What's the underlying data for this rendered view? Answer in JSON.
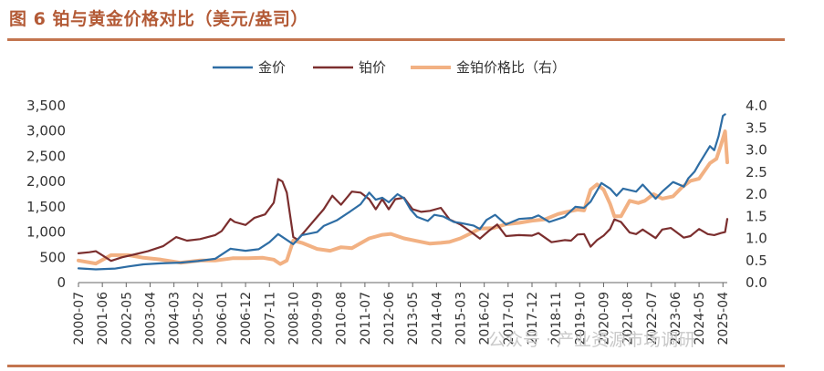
{
  "header": {
    "figure_title": "图 6  铂与黄金价格对比（美元/盎司）"
  },
  "watermark": "公众号 · 产业资源市场调研",
  "chart_data": {
    "type": "line",
    "title": "图 6  铂与黄金价格对比（美元/盎司）",
    "xlabel": "",
    "ylabel": "",
    "y2label": "",
    "x_tick_labels": [
      "2000-07",
      "2001-06",
      "2002-05",
      "2003-04",
      "2004-03",
      "2005-02",
      "2006-01",
      "2006-12",
      "2007-11",
      "2008-10",
      "2009-09",
      "2010-08",
      "2011-07",
      "2012-06",
      "2013-05",
      "2014-04",
      "2015-03",
      "2016-02",
      "2017-01",
      "2017-12",
      "2018-11",
      "2019-10",
      "2020-09",
      "2021-08",
      "2022-07",
      "2023-06",
      "2024-05",
      "2025-04"
    ],
    "ylim_left": [
      0,
      3500
    ],
    "ylim_right": [
      0,
      4.0
    ],
    "y_ticks_left": [
      "0",
      "500",
      "1,000",
      "1,500",
      "2,000",
      "2,500",
      "3,000",
      "3,500"
    ],
    "y_ticks_right": [
      "0.0",
      "0.5",
      "1.0",
      "1.5",
      "2.0",
      "2.5",
      "3.0",
      "3.5",
      "4.0"
    ],
    "legend_position": "top-center",
    "grid": false,
    "series": [
      {
        "name": "金价",
        "axis": "left",
        "color": "#2e6da4",
        "points": [
          [
            "2000-07",
            282
          ],
          [
            "2001-03",
            262
          ],
          [
            "2001-12",
            278
          ],
          [
            "2002-06",
            320
          ],
          [
            "2003-01",
            360
          ],
          [
            "2003-09",
            380
          ],
          [
            "2004-06",
            395
          ],
          [
            "2005-02",
            425
          ],
          [
            "2005-10",
            470
          ],
          [
            "2006-05",
            670
          ],
          [
            "2006-12",
            630
          ],
          [
            "2007-06",
            660
          ],
          [
            "2007-11",
            800
          ],
          [
            "2008-03",
            960
          ],
          [
            "2008-10",
            760
          ],
          [
            "2009-02",
            940
          ],
          [
            "2009-09",
            1000
          ],
          [
            "2009-12",
            1120
          ],
          [
            "2010-06",
            1230
          ],
          [
            "2010-12",
            1400
          ],
          [
            "2011-05",
            1550
          ],
          [
            "2011-09",
            1780
          ],
          [
            "2011-12",
            1640
          ],
          [
            "2012-03",
            1680
          ],
          [
            "2012-06",
            1590
          ],
          [
            "2012-10",
            1750
          ],
          [
            "2013-01",
            1670
          ],
          [
            "2013-04",
            1450
          ],
          [
            "2013-07",
            1300
          ],
          [
            "2013-12",
            1220
          ],
          [
            "2014-03",
            1340
          ],
          [
            "2014-07",
            1310
          ],
          [
            "2014-12",
            1200
          ],
          [
            "2015-03",
            1180
          ],
          [
            "2015-09",
            1130
          ],
          [
            "2015-12",
            1060
          ],
          [
            "2016-03",
            1240
          ],
          [
            "2016-07",
            1340
          ],
          [
            "2016-12",
            1150
          ],
          [
            "2017-06",
            1260
          ],
          [
            "2017-12",
            1280
          ],
          [
            "2018-03",
            1330
          ],
          [
            "2018-08",
            1200
          ],
          [
            "2019-03",
            1300
          ],
          [
            "2019-08",
            1500
          ],
          [
            "2019-12",
            1480
          ],
          [
            "2020-03",
            1600
          ],
          [
            "2020-08",
            1970
          ],
          [
            "2020-12",
            1860
          ],
          [
            "2021-03",
            1720
          ],
          [
            "2021-06",
            1860
          ],
          [
            "2021-12",
            1800
          ],
          [
            "2022-03",
            1940
          ],
          [
            "2022-09",
            1660
          ],
          [
            "2022-12",
            1800
          ],
          [
            "2023-05",
            1990
          ],
          [
            "2023-10",
            1900
          ],
          [
            "2023-12",
            2060
          ],
          [
            "2024-03",
            2200
          ],
          [
            "2024-05",
            2350
          ],
          [
            "2024-10",
            2700
          ],
          [
            "2024-12",
            2620
          ],
          [
            "2025-02",
            2900
          ],
          [
            "2025-04",
            3300
          ],
          [
            "2025-05",
            3330
          ]
        ]
      },
      {
        "name": "铂价",
        "axis": "left",
        "color": "#7b2e2e",
        "points": [
          [
            "2000-07",
            580
          ],
          [
            "2000-12",
            600
          ],
          [
            "2001-03",
            620
          ],
          [
            "2001-06",
            540
          ],
          [
            "2001-10",
            430
          ],
          [
            "2002-03",
            500
          ],
          [
            "2002-09",
            560
          ],
          [
            "2003-03",
            620
          ],
          [
            "2003-10",
            720
          ],
          [
            "2004-04",
            900
          ],
          [
            "2004-09",
            830
          ],
          [
            "2005-03",
            860
          ],
          [
            "2005-10",
            940
          ],
          [
            "2006-01",
            1020
          ],
          [
            "2006-05",
            1260
          ],
          [
            "2006-07",
            1200
          ],
          [
            "2006-12",
            1140
          ],
          [
            "2007-04",
            1280
          ],
          [
            "2007-09",
            1350
          ],
          [
            "2008-01",
            1580
          ],
          [
            "2008-03",
            2050
          ],
          [
            "2008-05",
            2000
          ],
          [
            "2008-07",
            1780
          ],
          [
            "2008-10",
            900
          ],
          [
            "2008-12",
            850
          ],
          [
            "2009-04",
            1050
          ],
          [
            "2009-09",
            1300
          ],
          [
            "2009-12",
            1450
          ],
          [
            "2010-04",
            1720
          ],
          [
            "2010-08",
            1540
          ],
          [
            "2011-01",
            1800
          ],
          [
            "2011-05",
            1780
          ],
          [
            "2011-09",
            1650
          ],
          [
            "2011-12",
            1450
          ],
          [
            "2012-03",
            1650
          ],
          [
            "2012-06",
            1450
          ],
          [
            "2012-09",
            1650
          ],
          [
            "2013-01",
            1680
          ],
          [
            "2013-05",
            1450
          ],
          [
            "2013-09",
            1400
          ],
          [
            "2014-01",
            1420
          ],
          [
            "2014-06",
            1480
          ],
          [
            "2014-10",
            1250
          ],
          [
            "2015-03",
            1150
          ],
          [
            "2015-08",
            1000
          ],
          [
            "2015-12",
            870
          ],
          [
            "2016-04",
            1020
          ],
          [
            "2016-08",
            1150
          ],
          [
            "2016-12",
            920
          ],
          [
            "2017-06",
            940
          ],
          [
            "2017-12",
            930
          ],
          [
            "2018-03",
            980
          ],
          [
            "2018-09",
            800
          ],
          [
            "2019-03",
            840
          ],
          [
            "2019-06",
            830
          ],
          [
            "2019-09",
            950
          ],
          [
            "2019-12",
            960
          ],
          [
            "2020-03",
            710
          ],
          [
            "2020-06",
            840
          ],
          [
            "2020-09",
            930
          ],
          [
            "2020-12",
            1060
          ],
          [
            "2021-02",
            1250
          ],
          [
            "2021-05",
            1200
          ],
          [
            "2021-09",
            990
          ],
          [
            "2021-12",
            960
          ],
          [
            "2022-03",
            1050
          ],
          [
            "2022-09",
            880
          ],
          [
            "2022-12",
            1050
          ],
          [
            "2023-04",
            1080
          ],
          [
            "2023-10",
            890
          ],
          [
            "2024-01",
            920
          ],
          [
            "2024-05",
            1060
          ],
          [
            "2024-09",
            960
          ],
          [
            "2024-12",
            940
          ],
          [
            "2025-03",
            980
          ],
          [
            "2025-05",
            1000
          ],
          [
            "2025-06",
            1260
          ]
        ]
      },
      {
        "name": "金铂价格比（右）",
        "axis": "right",
        "color": "#f2b183",
        "points": [
          [
            "2000-07",
            0.5
          ],
          [
            "2001-03",
            0.43
          ],
          [
            "2001-10",
            0.62
          ],
          [
            "2002-06",
            0.62
          ],
          [
            "2003-01",
            0.56
          ],
          [
            "2003-09",
            0.52
          ],
          [
            "2004-06",
            0.45
          ],
          [
            "2005-03",
            0.5
          ],
          [
            "2005-10",
            0.5
          ],
          [
            "2006-06",
            0.55
          ],
          [
            "2007-01",
            0.55
          ],
          [
            "2007-08",
            0.56
          ],
          [
            "2008-01",
            0.52
          ],
          [
            "2008-04",
            0.42
          ],
          [
            "2008-07",
            0.5
          ],
          [
            "2008-10",
            0.95
          ],
          [
            "2009-02",
            0.9
          ],
          [
            "2009-09",
            0.76
          ],
          [
            "2010-03",
            0.72
          ],
          [
            "2010-08",
            0.8
          ],
          [
            "2011-01",
            0.78
          ],
          [
            "2011-09",
            1.0
          ],
          [
            "2012-03",
            1.08
          ],
          [
            "2012-07",
            1.1
          ],
          [
            "2013-01",
            1.0
          ],
          [
            "2013-06",
            0.95
          ],
          [
            "2014-01",
            0.88
          ],
          [
            "2014-06",
            0.9
          ],
          [
            "2014-10",
            0.92
          ],
          [
            "2015-03",
            1.0
          ],
          [
            "2015-08",
            1.12
          ],
          [
            "2015-12",
            1.22
          ],
          [
            "2016-06",
            1.23
          ],
          [
            "2016-12",
            1.32
          ],
          [
            "2017-06",
            1.35
          ],
          [
            "2017-12",
            1.4
          ],
          [
            "2018-06",
            1.43
          ],
          [
            "2018-12",
            1.55
          ],
          [
            "2019-04",
            1.6
          ],
          [
            "2019-09",
            1.65
          ],
          [
            "2019-12",
            1.63
          ],
          [
            "2020-03",
            2.1
          ],
          [
            "2020-06",
            2.22
          ],
          [
            "2020-09",
            2.1
          ],
          [
            "2020-12",
            1.78
          ],
          [
            "2021-02",
            1.5
          ],
          [
            "2021-05",
            1.5
          ],
          [
            "2021-09",
            1.85
          ],
          [
            "2022-01",
            1.8
          ],
          [
            "2022-04",
            1.85
          ],
          [
            "2022-08",
            2.0
          ],
          [
            "2022-12",
            1.9
          ],
          [
            "2023-05",
            1.95
          ],
          [
            "2023-09",
            2.15
          ],
          [
            "2024-01",
            2.3
          ],
          [
            "2024-05",
            2.35
          ],
          [
            "2024-10",
            2.7
          ],
          [
            "2025-01",
            2.8
          ],
          [
            "2025-03",
            3.1
          ],
          [
            "2025-05",
            3.42
          ],
          [
            "2025-06",
            2.72
          ]
        ]
      }
    ]
  }
}
